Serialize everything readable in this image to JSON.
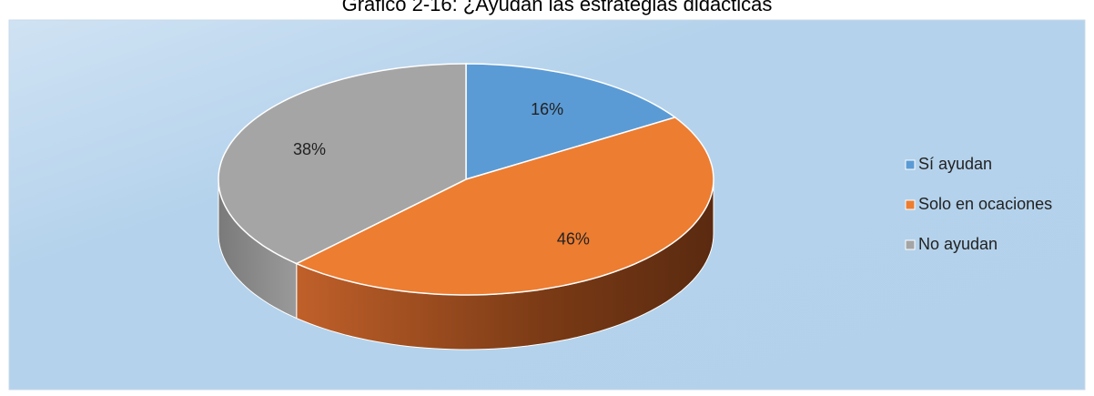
{
  "chart_data": {
    "type": "pie",
    "title": "Gráfico 2-16: ¿Ayudan las estrategias didácticas",
    "categories": [
      "Sí ayudan",
      "Solo en ocaciones",
      "No ayudan"
    ],
    "values": [
      16,
      46,
      38
    ],
    "value_labels": [
      "16%",
      "46%",
      "38%"
    ],
    "colors": [
      "#5b9bd5",
      "#ed7d31",
      "#a5a5a5"
    ],
    "legend": "right"
  }
}
